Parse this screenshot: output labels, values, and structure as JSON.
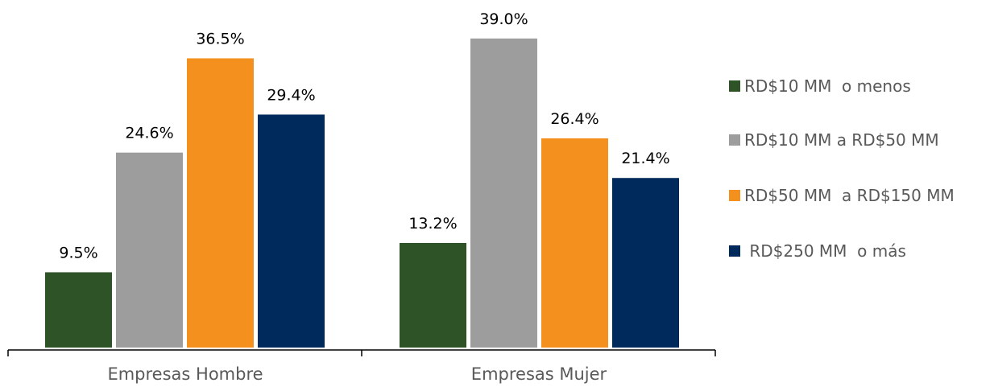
{
  "chart_data": {
    "type": "bar",
    "categories": [
      "Empresas Hombre",
      "Empresas Mujer"
    ],
    "series": [
      {
        "name": "RD$10 MM  o menos",
        "values": [
          9.5,
          13.2
        ],
        "labels": [
          "9.5%",
          "13.2%"
        ],
        "color": "#2e5327"
      },
      {
        "name": "RD$10 MM a RD$50 MM",
        "values": [
          24.6,
          39.0
        ],
        "labels": [
          "24.6%",
          "39.0%"
        ],
        "color": "#9d9d9d"
      },
      {
        "name": "RD$50 MM  a RD$150 MM",
        "values": [
          36.5,
          26.4
        ],
        "labels": [
          "36.5%",
          "26.4%"
        ],
        "color": "#f4911e"
      },
      {
        "name": " RD$250 MM  o más",
        "values": [
          29.4,
          21.4
        ],
        "labels": [
          "29.4%",
          "21.4%"
        ],
        "color": "#002a5c"
      }
    ],
    "ylim": [
      0,
      40
    ],
    "grid": false,
    "legend_position": "right",
    "title": "",
    "xlabel": "",
    "ylabel": ""
  }
}
